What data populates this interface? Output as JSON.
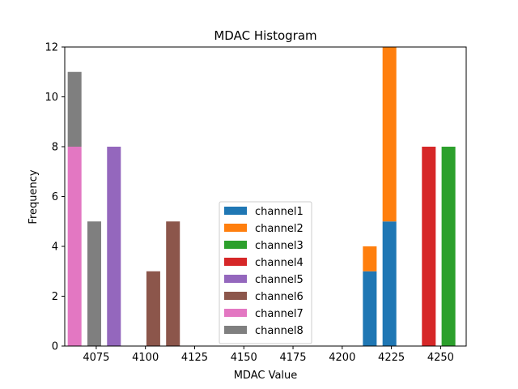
{
  "chart_data": {
    "type": "bar",
    "stacked": true,
    "title": "MDAC Histogram",
    "xlabel": "MDAC Value",
    "ylabel": "Frequency",
    "xlim": [
      4059,
      4263
    ],
    "ylim": [
      0,
      12
    ],
    "bar_width": 7,
    "xticks": [
      4075,
      4100,
      4125,
      4150,
      4175,
      4200,
      4225,
      4250
    ],
    "yticks": [
      0,
      2,
      4,
      6,
      8,
      10,
      12
    ],
    "legend_location": "lower-center",
    "series": [
      {
        "name": "channel1",
        "color": "#1f77b4",
        "bars": [
          {
            "x": 4214,
            "value": 3
          },
          {
            "x": 4224,
            "value": 5
          }
        ]
      },
      {
        "name": "channel2",
        "color": "#ff7f0e",
        "bars": [
          {
            "x": 4214,
            "value": 1
          },
          {
            "x": 4224,
            "value": 7
          }
        ]
      },
      {
        "name": "channel3",
        "color": "#2ca02c",
        "bars": [
          {
            "x": 4254,
            "value": 8
          }
        ]
      },
      {
        "name": "channel4",
        "color": "#d62728",
        "bars": [
          {
            "x": 4244,
            "value": 8
          }
        ]
      },
      {
        "name": "channel5",
        "color": "#9467bd",
        "bars": [
          {
            "x": 4084,
            "value": 8
          }
        ]
      },
      {
        "name": "channel6",
        "color": "#8c564b",
        "bars": [
          {
            "x": 4104,
            "value": 3
          },
          {
            "x": 4114,
            "value": 5
          }
        ]
      },
      {
        "name": "channel7",
        "color": "#e377c2",
        "bars": [
          {
            "x": 4064,
            "value": 8
          }
        ]
      },
      {
        "name": "channel8",
        "color": "#7f7f7f",
        "bars": [
          {
            "x": 4064,
            "value": 3
          },
          {
            "x": 4074,
            "value": 5
          }
        ]
      }
    ]
  }
}
